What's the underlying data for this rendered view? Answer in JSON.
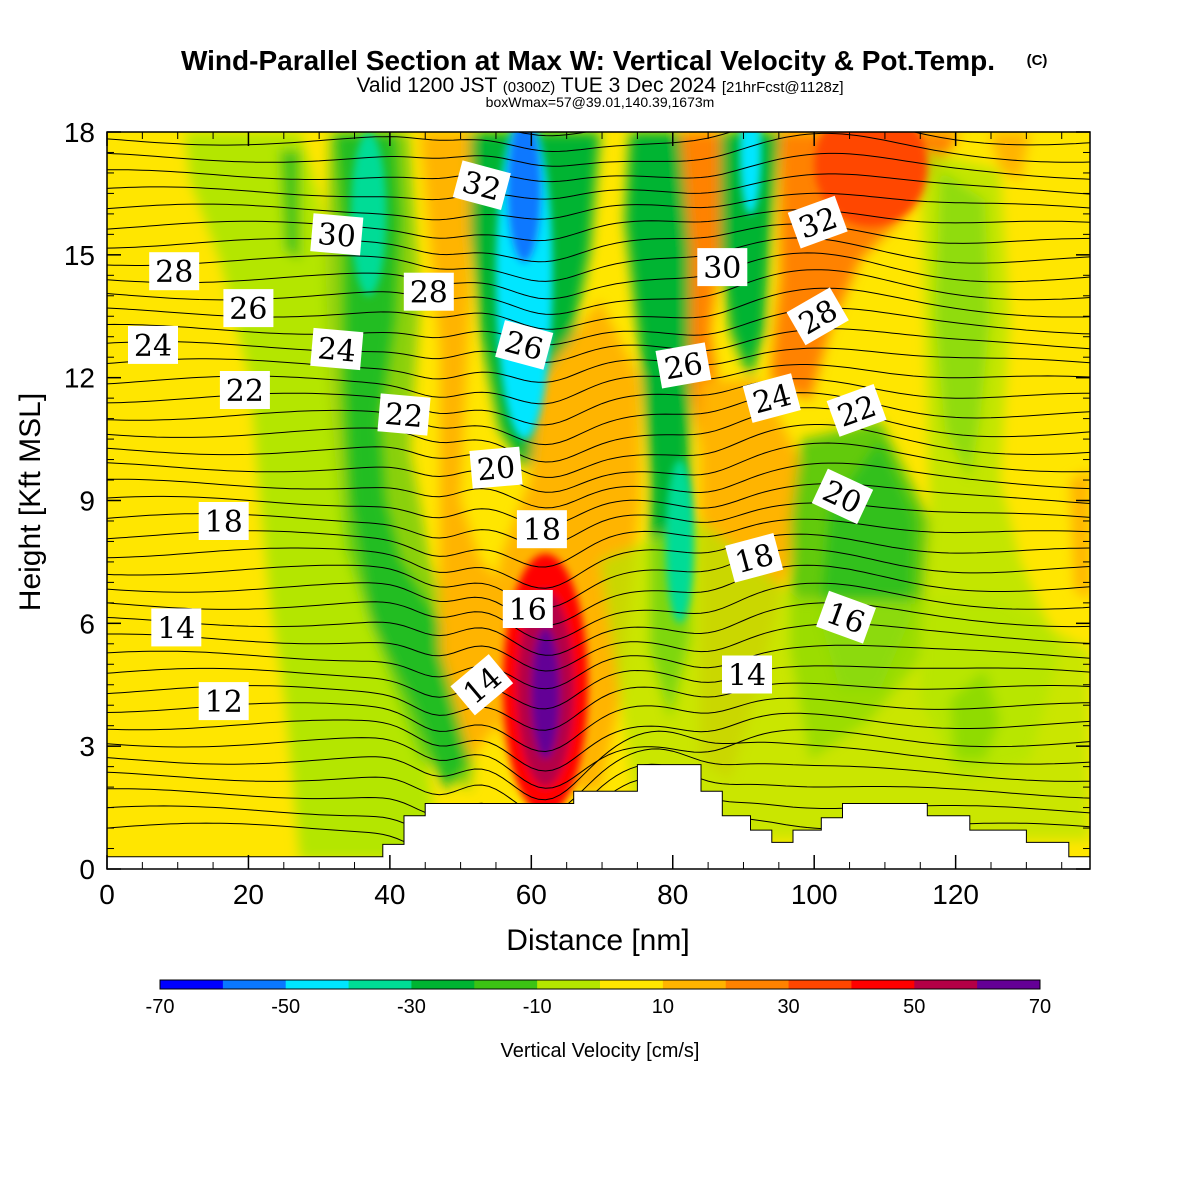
{
  "header": {
    "title": "Wind-Parallel Section at Max W: Vertical Velocity & Pot.Temp.",
    "copyright": "(C)",
    "valid_prefix": "Valid 1200 JST",
    "valid_zulu": "(0300Z)",
    "valid_date": "TUE 3 Dec 2024",
    "forecast": "[21hrFcst@1128z]",
    "box_info": "boxWmax=57@39.01,140.39,1673m"
  },
  "chart_data": {
    "type": "heatmap",
    "xlabel": "Distance [nm]",
    "ylabel": "Height [Kft MSL]",
    "xlim": [
      0,
      139
    ],
    "ylim": [
      0,
      18
    ],
    "x_ticks": [
      0,
      20,
      40,
      60,
      80,
      100,
      120
    ],
    "x_tick_labels": [
      "0",
      "20",
      "40",
      "60",
      "80",
      "100",
      "120"
    ],
    "y_ticks": [
      0,
      3,
      6,
      9,
      12,
      15,
      18
    ],
    "y_tick_labels": [
      "0",
      "3",
      "6",
      "9",
      "12",
      "15",
      "18"
    ],
    "colorbar": {
      "label": "Vertical Velocity [cm/s]",
      "tick_labels": [
        "-70",
        "-50",
        "-30",
        "-10",
        "10",
        "30",
        "50",
        "70"
      ],
      "colors": [
        "#0000ff",
        "#0a78ff",
        "#00e6ff",
        "#00dc96",
        "#00b432",
        "#3cc314",
        "#b4e600",
        "#ffe600",
        "#ffb400",
        "#ff8200",
        "#ff4600",
        "#ff0000",
        "#b40046",
        "#640096"
      ]
    },
    "background_color": "#ffe600",
    "velocity_features": [
      {
        "x": 62,
        "y": 4.5,
        "rx": 6,
        "ry": 3.2,
        "color": "#ff0000"
      },
      {
        "x": 62,
        "y": 4.4,
        "rx": 4,
        "ry": 2.4,
        "color": "#b40046"
      },
      {
        "x": 62,
        "y": 4.3,
        "rx": 2,
        "ry": 1.6,
        "color": "#640096"
      },
      {
        "x": 59,
        "y": 14.5,
        "rx": 4,
        "ry": 4,
        "color": "#00e6ff"
      },
      {
        "x": 59,
        "y": 16.6,
        "rx": 2.5,
        "ry": 1.8,
        "color": "#0a78ff"
      },
      {
        "x": 37,
        "y": 16,
        "rx": 2.5,
        "ry": 2,
        "color": "#00dc96"
      },
      {
        "x": 81,
        "y": 8,
        "rx": 2,
        "ry": 2,
        "color": "#00dc96"
      },
      {
        "x": 91,
        "y": 17.5,
        "rx": 1.5,
        "ry": 1.5,
        "color": "#00e6ff"
      },
      {
        "x": 108,
        "y": 17.2,
        "rx": 8,
        "ry": 1.5,
        "color": "#ff4600"
      }
    ],
    "terrain_floor_kft": 0.3,
    "terrain_profile": [
      [
        39,
        0.3
      ],
      [
        39,
        0.6
      ],
      [
        42,
        0.6
      ],
      [
        42,
        1.3
      ],
      [
        45,
        1.3
      ],
      [
        45,
        1.6
      ],
      [
        66,
        1.6
      ],
      [
        66,
        1.9
      ],
      [
        75,
        1.9
      ],
      [
        75,
        2.55
      ],
      [
        84,
        2.55
      ],
      [
        84,
        1.9
      ],
      [
        87,
        1.9
      ],
      [
        87,
        1.3
      ],
      [
        91,
        1.3
      ],
      [
        91,
        0.95
      ],
      [
        94,
        0.95
      ],
      [
        94,
        0.65
      ],
      [
        97,
        0.65
      ],
      [
        97,
        0.95
      ],
      [
        101,
        0.95
      ],
      [
        101,
        1.25
      ],
      [
        104,
        1.25
      ],
      [
        104,
        1.6
      ],
      [
        116,
        1.6
      ],
      [
        116,
        1.3
      ],
      [
        122,
        1.3
      ],
      [
        122,
        0.95
      ],
      [
        130,
        0.95
      ],
      [
        130,
        0.65
      ],
      [
        136,
        0.65
      ],
      [
        136,
        0.3
      ],
      [
        139,
        0.3
      ]
    ],
    "theta_contour_labels": [
      {
        "text": "32",
        "x": 53,
        "y": 16.7,
        "rot": 15
      },
      {
        "text": "30",
        "x": 32.5,
        "y": 15.5,
        "rot": 5
      },
      {
        "text": "28",
        "x": 9.5,
        "y": 14.6,
        "rot": 0
      },
      {
        "text": "26",
        "x": 20,
        "y": 13.7,
        "rot": 0
      },
      {
        "text": "24",
        "x": 6.5,
        "y": 12.8,
        "rot": 0
      },
      {
        "text": "24",
        "x": 32.5,
        "y": 12.7,
        "rot": 5
      },
      {
        "text": "22",
        "x": 19.5,
        "y": 11.7,
        "rot": 0
      },
      {
        "text": "22",
        "x": 42,
        "y": 11.1,
        "rot": 5
      },
      {
        "text": "28",
        "x": 45.5,
        "y": 14.1,
        "rot": 0
      },
      {
        "text": "26",
        "x": 59,
        "y": 12.8,
        "rot": 15
      },
      {
        "text": "20",
        "x": 55,
        "y": 9.8,
        "rot": -5
      },
      {
        "text": "18",
        "x": 61.5,
        "y": 8.3,
        "rot": 0
      },
      {
        "text": "16",
        "x": 59.5,
        "y": 6.35,
        "rot": 0
      },
      {
        "text": "14",
        "x": 53,
        "y": 4.5,
        "rot": -40
      },
      {
        "text": "18",
        "x": 16.5,
        "y": 8.5,
        "rot": 0
      },
      {
        "text": "14",
        "x": 9.8,
        "y": 5.9,
        "rot": 0
      },
      {
        "text": "12",
        "x": 16.5,
        "y": 4.1,
        "rot": 0
      },
      {
        "text": "30",
        "x": 87,
        "y": 14.7,
        "rot": 0
      },
      {
        "text": "32",
        "x": 100.5,
        "y": 15.8,
        "rot": -20
      },
      {
        "text": "28",
        "x": 100.5,
        "y": 13.5,
        "rot": -30
      },
      {
        "text": "26",
        "x": 81.5,
        "y": 12.3,
        "rot": -10
      },
      {
        "text": "24",
        "x": 94,
        "y": 11.5,
        "rot": -15
      },
      {
        "text": "22",
        "x": 106,
        "y": 11.2,
        "rot": -20
      },
      {
        "text": "20",
        "x": 104,
        "y": 9.1,
        "rot": 25
      },
      {
        "text": "18",
        "x": 91.5,
        "y": 7.6,
        "rot": -15
      },
      {
        "text": "16",
        "x": 104.5,
        "y": 6.15,
        "rot": 20
      },
      {
        "text": "14",
        "x": 90.5,
        "y": 4.75,
        "rot": 0
      }
    ]
  }
}
